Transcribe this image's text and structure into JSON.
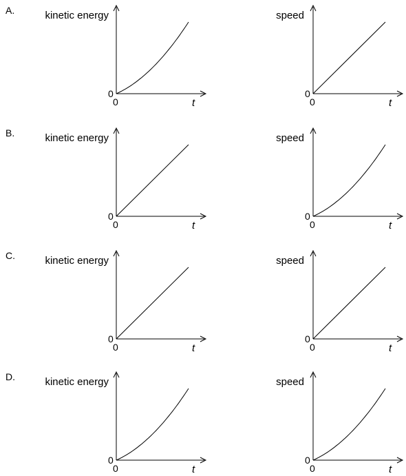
{
  "options": [
    {
      "letter": "A.",
      "graphs": [
        {
          "ylabel": "kinetic energy",
          "xlabel": "t",
          "origin_y": "0",
          "origin_x": "0",
          "shape": "curve"
        },
        {
          "ylabel": "speed",
          "xlabel": "t",
          "origin_y": "0",
          "origin_x": "0",
          "shape": "line"
        }
      ]
    },
    {
      "letter": "B.",
      "graphs": [
        {
          "ylabel": "kinetic energy",
          "xlabel": "t",
          "origin_y": "0",
          "origin_x": "0",
          "shape": "line"
        },
        {
          "ylabel": "speed",
          "xlabel": "t",
          "origin_y": "0",
          "origin_x": "0",
          "shape": "curve"
        }
      ]
    },
    {
      "letter": "C.",
      "graphs": [
        {
          "ylabel": "kinetic energy",
          "xlabel": "t",
          "origin_y": "0",
          "origin_x": "0",
          "shape": "line"
        },
        {
          "ylabel": "speed",
          "xlabel": "t",
          "origin_y": "0",
          "origin_x": "0",
          "shape": "line"
        }
      ]
    },
    {
      "letter": "D.",
      "graphs": [
        {
          "ylabel": "kinetic energy",
          "xlabel": "t",
          "origin_y": "0",
          "origin_x": "0",
          "shape": "curve"
        },
        {
          "ylabel": "speed",
          "xlabel": "t",
          "origin_y": "0",
          "origin_x": "0",
          "shape": "curve"
        }
      ]
    }
  ]
}
